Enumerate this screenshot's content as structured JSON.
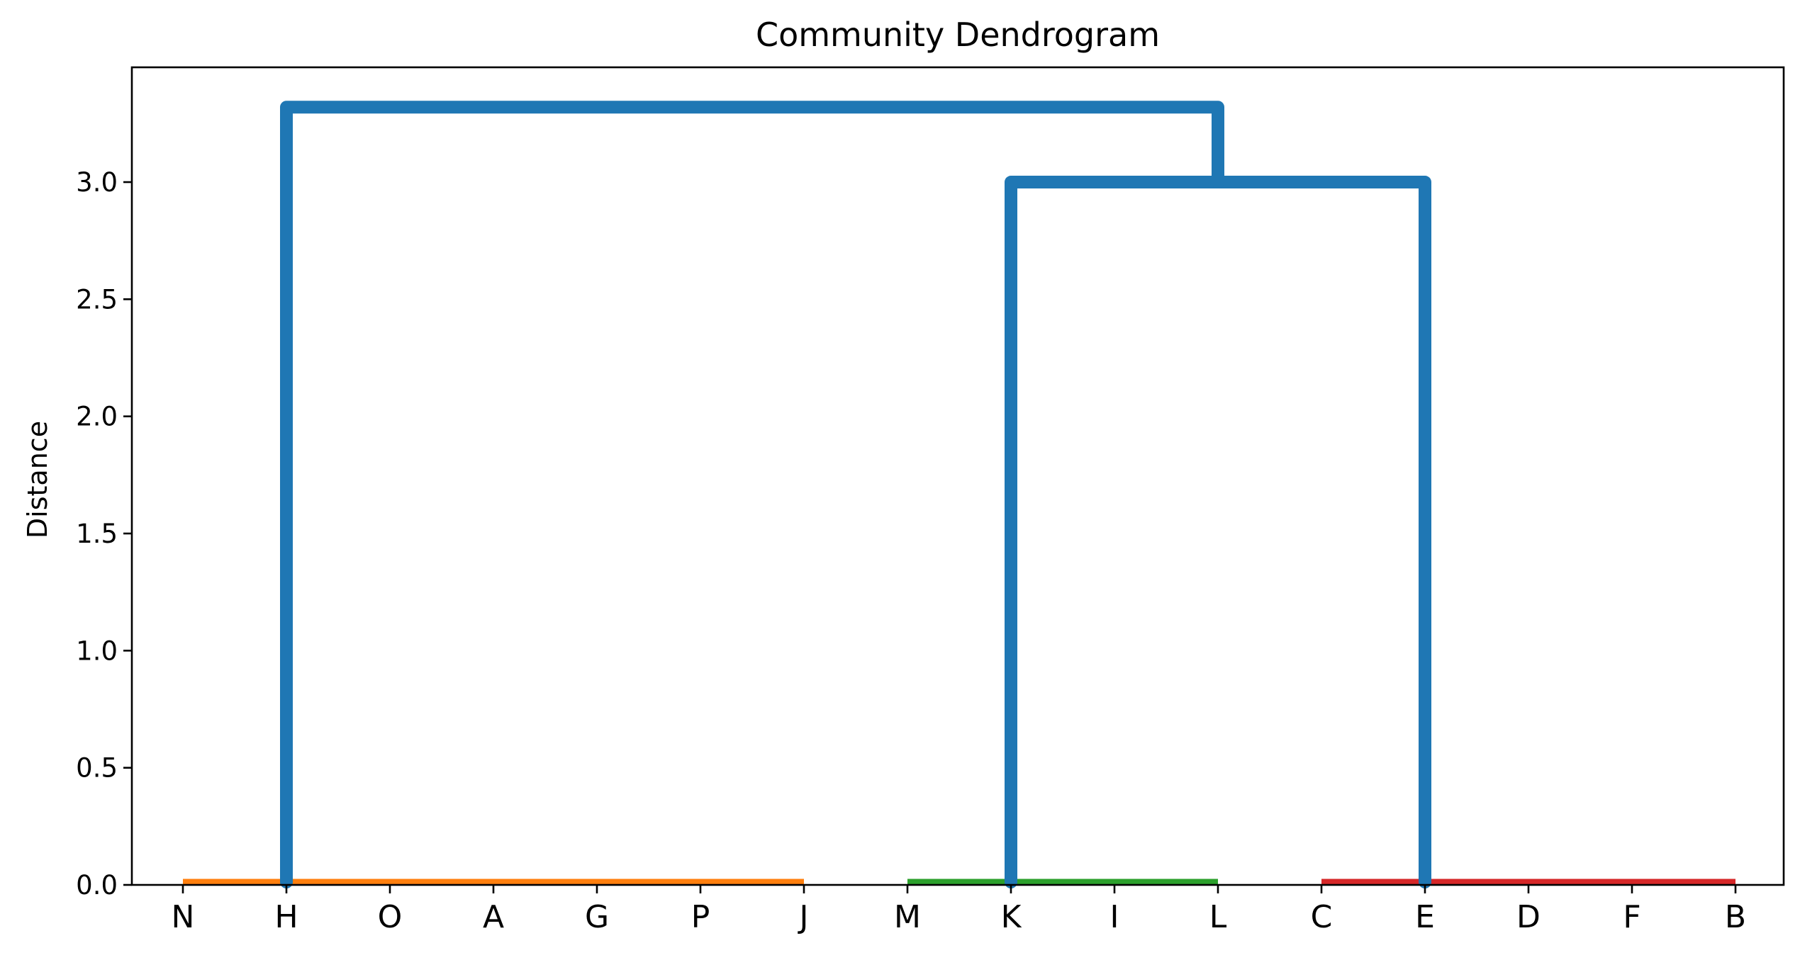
{
  "chart_data": {
    "type": "dendrogram",
    "title": "Community Dendrogram",
    "xlabel": "",
    "ylabel": "Distance",
    "ylim": [
      0,
      3.49
    ],
    "yticks": [
      "0.0",
      "0.5",
      "1.0",
      "1.5",
      "2.0",
      "2.5",
      "3.0"
    ],
    "ytick_values": [
      0,
      0.5,
      1.0,
      1.5,
      2.0,
      2.5,
      3.0
    ],
    "leaves": [
      "N",
      "H",
      "O",
      "A",
      "G",
      "P",
      "J",
      "M",
      "K",
      "I",
      "L",
      "C",
      "E",
      "D",
      "F",
      "B"
    ],
    "grid": false,
    "legend": "none",
    "clusters": [
      {
        "leaves": [
          "N",
          "H",
          "O",
          "A",
          "G",
          "P",
          "J"
        ],
        "height": 0.0,
        "color": "#ff7f0e"
      },
      {
        "leaves": [
          "M",
          "K",
          "I",
          "L"
        ],
        "height": 0.0,
        "color": "#2ca02c"
      },
      {
        "leaves": [
          "C",
          "E",
          "D",
          "F",
          "B"
        ],
        "height": 0.0,
        "color": "#d62728"
      }
    ],
    "merges": [
      {
        "left": "K",
        "right": "E",
        "height": 3.0,
        "color": "#1f77b4"
      },
      {
        "left": "H",
        "right": "merge-1",
        "height": 3.32,
        "color": "#1f77b4"
      }
    ]
  }
}
